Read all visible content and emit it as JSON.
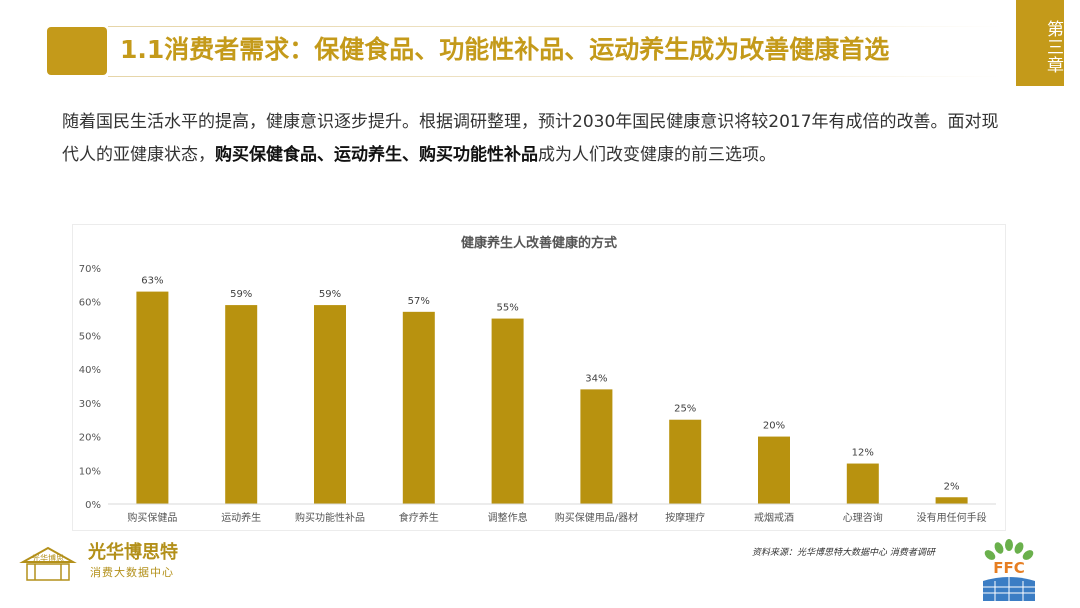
{
  "header": {
    "title": "1.1消费者需求：保健食品、功能性补品、运动养生成为改善健康首选",
    "chapter": "第三章"
  },
  "intro": {
    "part1": "随着国民生活水平的提高，健康意识逐步提升。根据调研整理，预计2030年国民健康意识将较2017年有成倍的改善。面对现代人的亚健康状态，",
    "bold": "购买保健食品、运动养生、购买功能性补品",
    "part2": "成为人们改变健康的前三选项。"
  },
  "chart_data": {
    "type": "bar",
    "title": "健康养生人改善健康的方式",
    "categories": [
      "购买保健品",
      "运动养生",
      "购买功能性补品",
      "食疗养生",
      "调整作息",
      "购买保健用品/器材",
      "按摩理疗",
      "戒烟戒酒",
      "心理咨询",
      "没有用任何手段"
    ],
    "values": [
      63,
      59,
      59,
      57,
      55,
      34,
      25,
      20,
      12,
      2
    ],
    "value_labels": [
      "63%",
      "59%",
      "59%",
      "57%",
      "55%",
      "34%",
      "25%",
      "20%",
      "12%",
      "2%"
    ],
    "ylim": [
      0,
      70
    ],
    "yticks": [
      "0%",
      "10%",
      "20%",
      "30%",
      "40%",
      "50%",
      "60%",
      "70%"
    ],
    "grid": false,
    "bar_color": "#b8920f"
  },
  "footer": {
    "brand_name": "光华博思特",
    "brand_sub": "消费大数据中心",
    "source": "资料来源：光华博思特大数据中心  消费者调研",
    "logo_left_text": "光华博思",
    "logo_right_text": "FFC"
  }
}
